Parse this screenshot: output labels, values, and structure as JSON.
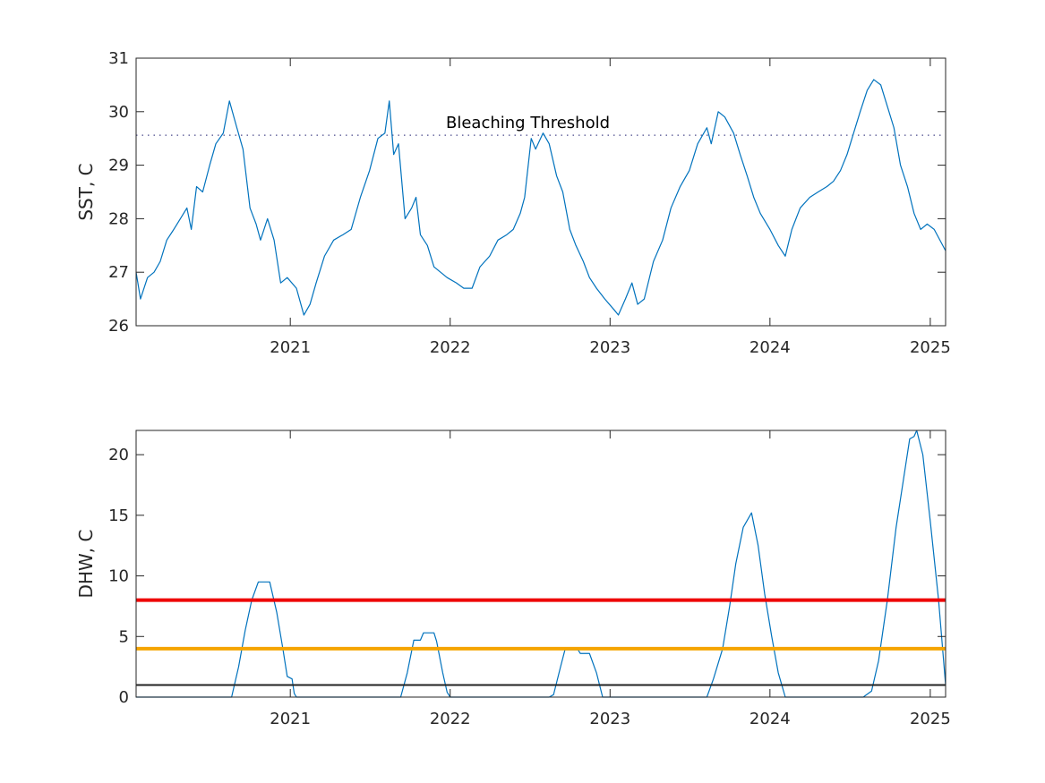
{
  "chart_data": [
    {
      "type": "line",
      "ylabel": "SST, C",
      "xlim": [
        "2020-01-15",
        "2025-02-05"
      ],
      "ylim": [
        26,
        31
      ],
      "yticks": [
        26,
        27,
        28,
        29,
        30,
        31
      ],
      "xticks": [
        {
          "label": "2021",
          "date": "2021-01-01"
        },
        {
          "label": "2022",
          "date": "2022-01-01"
        },
        {
          "label": "2023",
          "date": "2023-01-01"
        },
        {
          "label": "2024",
          "date": "2024-01-01"
        },
        {
          "label": "2025",
          "date": "2025-01-01"
        }
      ],
      "grid": false,
      "threshold": {
        "label": "Bleaching Threshold",
        "value": 29.56,
        "style": "dotted",
        "color": "#4a4a8c"
      },
      "series": [
        {
          "color": "#0072bd",
          "points": [
            [
              "2020-01-15",
              27.0
            ],
            [
              "2020-01-25",
              26.5
            ],
            [
              "2020-02-10",
              26.9
            ],
            [
              "2020-02-25",
              27.0
            ],
            [
              "2020-03-10",
              27.2
            ],
            [
              "2020-03-25",
              27.6
            ],
            [
              "2020-04-10",
              27.8
            ],
            [
              "2020-04-25",
              28.0
            ],
            [
              "2020-05-10",
              28.2
            ],
            [
              "2020-05-20",
              27.8
            ],
            [
              "2020-06-01",
              28.6
            ],
            [
              "2020-06-15",
              28.5
            ],
            [
              "2020-07-01",
              29.0
            ],
            [
              "2020-07-15",
              29.4
            ],
            [
              "2020-08-01",
              29.6
            ],
            [
              "2020-08-15",
              30.2
            ],
            [
              "2020-09-01",
              29.7
            ],
            [
              "2020-09-15",
              29.3
            ],
            [
              "2020-10-01",
              28.2
            ],
            [
              "2020-10-15",
              27.9
            ],
            [
              "2020-10-25",
              27.6
            ],
            [
              "2020-11-10",
              28.0
            ],
            [
              "2020-11-25",
              27.6
            ],
            [
              "2020-12-10",
              26.8
            ],
            [
              "2020-12-25",
              26.9
            ],
            [
              "2021-01-15",
              26.7
            ],
            [
              "2021-02-01",
              26.2
            ],
            [
              "2021-02-15",
              26.4
            ],
            [
              "2021-03-01",
              26.8
            ],
            [
              "2021-03-20",
              27.3
            ],
            [
              "2021-04-10",
              27.6
            ],
            [
              "2021-05-01",
              27.7
            ],
            [
              "2021-05-20",
              27.8
            ],
            [
              "2021-06-10",
              28.4
            ],
            [
              "2021-07-01",
              28.9
            ],
            [
              "2021-07-20",
              29.5
            ],
            [
              "2021-08-05",
              29.6
            ],
            [
              "2021-08-15",
              30.2
            ],
            [
              "2021-08-25",
              29.2
            ],
            [
              "2021-09-05",
              29.4
            ],
            [
              "2021-09-20",
              28.0
            ],
            [
              "2021-10-05",
              28.2
            ],
            [
              "2021-10-15",
              28.4
            ],
            [
              "2021-10-25",
              27.7
            ],
            [
              "2021-11-10",
              27.5
            ],
            [
              "2021-11-25",
              27.1
            ],
            [
              "2021-12-10",
              27.0
            ],
            [
              "2021-12-25",
              26.9
            ],
            [
              "2022-01-15",
              26.8
            ],
            [
              "2022-02-01",
              26.7
            ],
            [
              "2022-02-20",
              26.7
            ],
            [
              "2022-03-10",
              27.1
            ],
            [
              "2022-04-01",
              27.3
            ],
            [
              "2022-04-20",
              27.6
            ],
            [
              "2022-05-10",
              27.7
            ],
            [
              "2022-05-25",
              27.8
            ],
            [
              "2022-06-10",
              28.1
            ],
            [
              "2022-06-20",
              28.4
            ],
            [
              "2022-07-05",
              29.5
            ],
            [
              "2022-07-15",
              29.3
            ],
            [
              "2022-08-01",
              29.6
            ],
            [
              "2022-08-15",
              29.4
            ],
            [
              "2022-09-01",
              28.8
            ],
            [
              "2022-09-15",
              28.5
            ],
            [
              "2022-10-01",
              27.8
            ],
            [
              "2022-10-15",
              27.5
            ],
            [
              "2022-11-01",
              27.2
            ],
            [
              "2022-11-15",
              26.9
            ],
            [
              "2022-12-01",
              26.7
            ],
            [
              "2022-12-20",
              26.5
            ],
            [
              "2023-01-10",
              26.3
            ],
            [
              "2023-01-20",
              26.2
            ],
            [
              "2023-02-05",
              26.5
            ],
            [
              "2023-02-20",
              26.8
            ],
            [
              "2023-03-05",
              26.4
            ],
            [
              "2023-03-20",
              26.5
            ],
            [
              "2023-04-10",
              27.2
            ],
            [
              "2023-05-01",
              27.6
            ],
            [
              "2023-05-20",
              28.2
            ],
            [
              "2023-06-10",
              28.6
            ],
            [
              "2023-07-01",
              28.9
            ],
            [
              "2023-07-20",
              29.4
            ],
            [
              "2023-08-10",
              29.7
            ],
            [
              "2023-08-20",
              29.4
            ],
            [
              "2023-09-05",
              30.0
            ],
            [
              "2023-09-20",
              29.9
            ],
            [
              "2023-10-10",
              29.6
            ],
            [
              "2023-10-25",
              29.2
            ],
            [
              "2023-11-10",
              28.8
            ],
            [
              "2023-11-25",
              28.4
            ],
            [
              "2023-12-10",
              28.1
            ],
            [
              "2024-01-01",
              27.8
            ],
            [
              "2024-01-20",
              27.5
            ],
            [
              "2024-02-05",
              27.3
            ],
            [
              "2024-02-20",
              27.8
            ],
            [
              "2024-03-10",
              28.2
            ],
            [
              "2024-04-01",
              28.4
            ],
            [
              "2024-04-20",
              28.5
            ],
            [
              "2024-05-10",
              28.6
            ],
            [
              "2024-05-25",
              28.7
            ],
            [
              "2024-06-10",
              28.9
            ],
            [
              "2024-06-25",
              29.2
            ],
            [
              "2024-07-10",
              29.6
            ],
            [
              "2024-07-25",
              30.0
            ],
            [
              "2024-08-10",
              30.4
            ],
            [
              "2024-08-25",
              30.6
            ],
            [
              "2024-09-10",
              30.5
            ],
            [
              "2024-09-25",
              30.1
            ],
            [
              "2024-10-10",
              29.7
            ],
            [
              "2024-10-25",
              29.0
            ],
            [
              "2024-11-10",
              28.6
            ],
            [
              "2024-11-25",
              28.1
            ],
            [
              "2024-12-10",
              27.8
            ],
            [
              "2024-12-25",
              27.9
            ],
            [
              "2025-01-10",
              27.8
            ],
            [
              "2025-02-05",
              27.4
            ]
          ]
        }
      ]
    },
    {
      "type": "line",
      "ylabel": "DHW, C",
      "xlim": [
        "2020-01-15",
        "2025-02-05"
      ],
      "ylim": [
        0,
        22
      ],
      "yticks": [
        0,
        5,
        10,
        15,
        20
      ],
      "xticks": [
        {
          "label": "2021",
          "date": "2021-01-01"
        },
        {
          "label": "2022",
          "date": "2022-01-01"
        },
        {
          "label": "2023",
          "date": "2023-01-01"
        },
        {
          "label": "2024",
          "date": "2024-01-01"
        },
        {
          "label": "2025",
          "date": "2025-01-01"
        }
      ],
      "grid": false,
      "reference_lines": [
        {
          "value": 8,
          "color": "#ee0000"
        },
        {
          "value": 4,
          "color": "#f5a400"
        },
        {
          "value": 1,
          "color": "#222222"
        }
      ],
      "series": [
        {
          "color": "#0072bd",
          "points": [
            [
              "2020-01-15",
              0
            ],
            [
              "2020-08-20",
              0
            ],
            [
              "2020-09-05",
              2.5
            ],
            [
              "2020-09-20",
              5.5
            ],
            [
              "2020-10-05",
              8.0
            ],
            [
              "2020-10-20",
              9.5
            ],
            [
              "2020-11-15",
              9.5
            ],
            [
              "2020-12-01",
              7.0
            ],
            [
              "2020-12-15",
              4.0
            ],
            [
              "2020-12-25",
              1.7
            ],
            [
              "2021-01-05",
              1.5
            ],
            [
              "2021-01-10",
              0.3
            ],
            [
              "2021-01-15",
              0
            ],
            [
              "2021-09-10",
              0
            ],
            [
              "2021-09-25",
              2.0
            ],
            [
              "2021-10-10",
              4.7
            ],
            [
              "2021-10-25",
              4.7
            ],
            [
              "2021-11-01",
              5.3
            ],
            [
              "2021-11-25",
              5.3
            ],
            [
              "2021-12-01",
              4.6
            ],
            [
              "2021-12-15",
              2.0
            ],
            [
              "2021-12-25",
              0.4
            ],
            [
              "2022-01-01",
              0
            ],
            [
              "2022-08-15",
              0
            ],
            [
              "2022-08-25",
              0.2
            ],
            [
              "2022-09-10",
              2.5
            ],
            [
              "2022-09-20",
              3.9
            ],
            [
              "2022-10-20",
              3.9
            ],
            [
              "2022-10-25",
              3.6
            ],
            [
              "2022-11-15",
              3.6
            ],
            [
              "2022-12-01",
              2.0
            ],
            [
              "2022-12-15",
              0
            ],
            [
              "2023-08-10",
              0
            ],
            [
              "2023-08-25",
              1.5
            ],
            [
              "2023-09-15",
              4.0
            ],
            [
              "2023-10-01",
              7.5
            ],
            [
              "2023-10-15",
              11.0
            ],
            [
              "2023-11-01",
              14.0
            ],
            [
              "2023-11-20",
              15.2
            ],
            [
              "2023-12-05",
              12.5
            ],
            [
              "2023-12-20",
              8.5
            ],
            [
              "2024-01-05",
              5.0
            ],
            [
              "2024-01-20",
              2.0
            ],
            [
              "2024-02-05",
              0
            ],
            [
              "2024-08-01",
              0
            ],
            [
              "2024-08-20",
              0.5
            ],
            [
              "2024-09-05",
              3.0
            ],
            [
              "2024-09-25",
              8.0
            ],
            [
              "2024-10-15",
              14.0
            ],
            [
              "2024-11-01",
              18.0
            ],
            [
              "2024-11-15",
              21.3
            ],
            [
              "2024-11-25",
              21.5
            ],
            [
              "2024-12-01",
              22.0
            ],
            [
              "2024-12-15",
              20.0
            ],
            [
              "2025-01-01",
              14.5
            ],
            [
              "2025-01-20",
              8.0
            ],
            [
              "2025-02-05",
              1.0
            ]
          ]
        }
      ]
    }
  ]
}
